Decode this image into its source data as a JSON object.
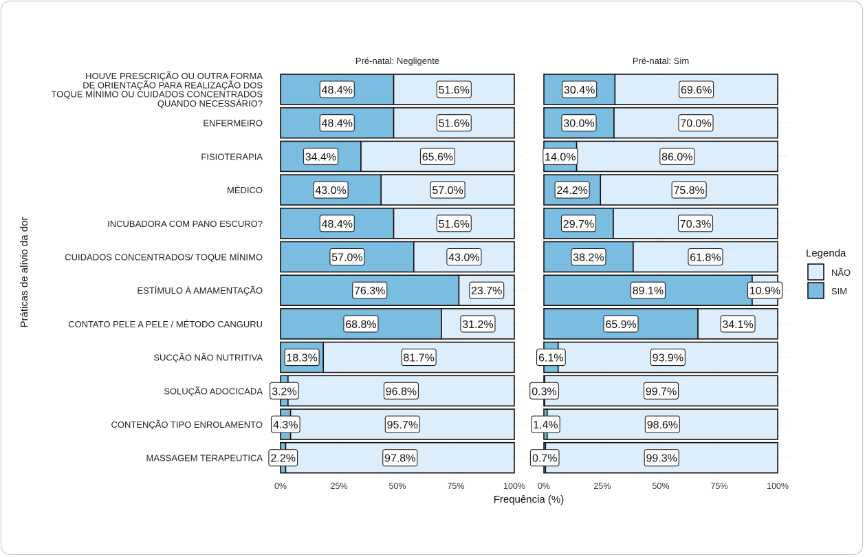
{
  "chart_data": {
    "type": "bar",
    "orientation": "horizontal",
    "stacked": true,
    "title": "",
    "xlabel": "Frequência (%)",
    "ylabel": "Práticas de alívio da dor",
    "xlim": [
      0,
      100
    ],
    "x_ticks": [
      "0%",
      "25%",
      "50%",
      "75%",
      "100%"
    ],
    "legend": {
      "title": "Legenda",
      "position": "right",
      "entries": [
        {
          "label": "NÃO",
          "color": "#dceefb"
        },
        {
          "label": "SIM",
          "color": "#7bbde0"
        }
      ]
    },
    "categories": [
      [
        "HOUVE PRESCRIÇÃO OU OUTRA FORMA",
        "DE ORIENTAÇÃO  PARA REALIZAÇÃO DOS",
        "TOQUE MÍNIMO  OU CUIDADOS CONCENTRADOS",
        "QUANDO NECESSÁRIO?"
      ],
      [
        "ENFERMEIRO"
      ],
      [
        "FISIOTERAPIA"
      ],
      [
        "MÉDICO"
      ],
      [
        "INCUBADORA COM PANO ESCURO?"
      ],
      [
        "CUIDADOS CONCENTRADOS/ TOQUE MÍNIMO"
      ],
      [
        "ESTÍMULO À AMAMENTAÇÃO"
      ],
      [
        "CONTATO PELE A PELE / MÉTODO CANGURU"
      ],
      [
        "SUCÇÃO NÃO NUTRITIVA"
      ],
      [
        "SOLUÇÃO ADOCICADA"
      ],
      [
        "CONTENÇÃO TIPO ENROLAMENTO"
      ],
      [
        "MASSAGEM TERAPEUTICA"
      ]
    ],
    "panels": [
      {
        "title": "Pré-natal: Negligente",
        "series": [
          {
            "name": "SIM",
            "values": [
              48.4,
              48.4,
              34.4,
              43.0,
              48.4,
              57.0,
              76.3,
              68.8,
              18.3,
              3.2,
              4.3,
              2.2
            ],
            "labels": [
              "48.4%",
              "48.4%",
              "34.4%",
              "43.0%",
              "48.4%",
              "57.0%",
              "76.3%",
              "68.8%",
              "18.3%",
              "3.2%",
              "4.3%",
              "2.2%"
            ]
          },
          {
            "name": "NÃO",
            "values": [
              51.6,
              51.6,
              65.6,
              57.0,
              51.6,
              43.0,
              23.7,
              31.2,
              81.7,
              96.8,
              95.7,
              97.8
            ],
            "labels": [
              "51.6%",
              "51.6%",
              "65.6%",
              "57.0%",
              "51.6%",
              "43.0%",
              "23.7%",
              "31.2%",
              "81.7%",
              "96.8%",
              "95.7%",
              "97.8%"
            ]
          }
        ]
      },
      {
        "title": "Pré-natal: Sim",
        "series": [
          {
            "name": "SIM",
            "values": [
              30.4,
              30.0,
              14.0,
              24.2,
              29.7,
              38.2,
              89.1,
              65.9,
              6.1,
              0.3,
              1.4,
              0.7
            ],
            "labels": [
              "30.4%",
              "30.0%",
              "14.0%",
              "24.2%",
              "29.7%",
              "38.2%",
              "89.1%",
              "65.9%",
              "6.1%",
              "0.3%",
              "1.4%",
              "0.7%"
            ]
          },
          {
            "name": "NÃO",
            "values": [
              69.6,
              70.0,
              86.0,
              75.8,
              70.3,
              61.8,
              10.9,
              34.1,
              93.9,
              99.7,
              98.6,
              99.3
            ],
            "labels": [
              "69.6%",
              "70.0%",
              "86.0%",
              "75.8%",
              "70.3%",
              "61.8%",
              "10.9%",
              "34.1%",
              "93.9%",
              "99.7%",
              "98.6%",
              "99.3%"
            ]
          }
        ]
      }
    ]
  }
}
